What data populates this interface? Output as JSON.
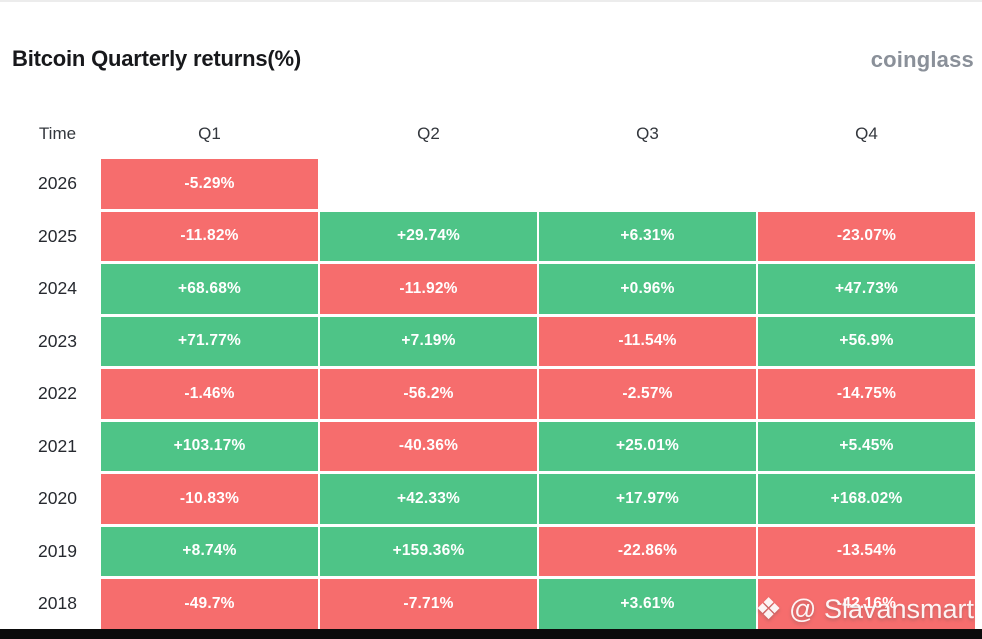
{
  "page": {
    "title": "Bitcoin Quarterly returns(%)",
    "brand": "coinglass"
  },
  "watermark": {
    "icon": "binance-diamond",
    "glyph": "❖",
    "handle": "@ Slavansmart"
  },
  "table": {
    "headers": [
      "Time",
      "Q1",
      "Q2",
      "Q3",
      "Q4"
    ],
    "rows": [
      {
        "year": "2026",
        "cells": [
          "-5.29%",
          "",
          "",
          ""
        ]
      },
      {
        "year": "2025",
        "cells": [
          "-11.82%",
          "+29.74%",
          "+6.31%",
          "-23.07%"
        ]
      },
      {
        "year": "2024",
        "cells": [
          "+68.68%",
          "-11.92%",
          "+0.96%",
          "+47.73%"
        ]
      },
      {
        "year": "2023",
        "cells": [
          "+71.77%",
          "+7.19%",
          "-11.54%",
          "+56.9%"
        ]
      },
      {
        "year": "2022",
        "cells": [
          "-1.46%",
          "-56.2%",
          "-2.57%",
          "-14.75%"
        ]
      },
      {
        "year": "2021",
        "cells": [
          "+103.17%",
          "-40.36%",
          "+25.01%",
          "+5.45%"
        ]
      },
      {
        "year": "2020",
        "cells": [
          "-10.83%",
          "+42.33%",
          "+17.97%",
          "+168.02%"
        ]
      },
      {
        "year": "2019",
        "cells": [
          "+8.74%",
          "+159.36%",
          "-22.86%",
          "-13.54%"
        ]
      },
      {
        "year": "2018",
        "cells": [
          "-49.7%",
          "-7.71%",
          "+3.61%",
          "-42.16%"
        ]
      }
    ]
  },
  "colors": {
    "positive": "#4ec487",
    "negative": "#f66d6d",
    "brand_text": "#8a9099",
    "title_text": "#17181b"
  },
  "chart_data": {
    "type": "heatmap",
    "title": "Bitcoin Quarterly returns(%)",
    "columns": [
      "Q1",
      "Q2",
      "Q3",
      "Q4"
    ],
    "rows": [
      "2026",
      "2025",
      "2024",
      "2023",
      "2022",
      "2021",
      "2020",
      "2019",
      "2018"
    ],
    "values": [
      [
        -5.29,
        null,
        null,
        null
      ],
      [
        -11.82,
        29.74,
        6.31,
        -23.07
      ],
      [
        68.68,
        -11.92,
        0.96,
        47.73
      ],
      [
        71.77,
        7.19,
        -11.54,
        56.9
      ],
      [
        -1.46,
        -56.2,
        -2.57,
        -14.75
      ],
      [
        103.17,
        -40.36,
        25.01,
        5.45
      ],
      [
        -10.83,
        42.33,
        17.97,
        168.02
      ],
      [
        8.74,
        159.36,
        -22.86,
        -13.54
      ],
      [
        -49.7,
        -7.71,
        3.61,
        -42.16
      ]
    ],
    "unit": "%",
    "legend": "green = positive quarterly return, red = negative quarterly return",
    "color_positive": "#4ec487",
    "color_negative": "#f66d6d"
  }
}
